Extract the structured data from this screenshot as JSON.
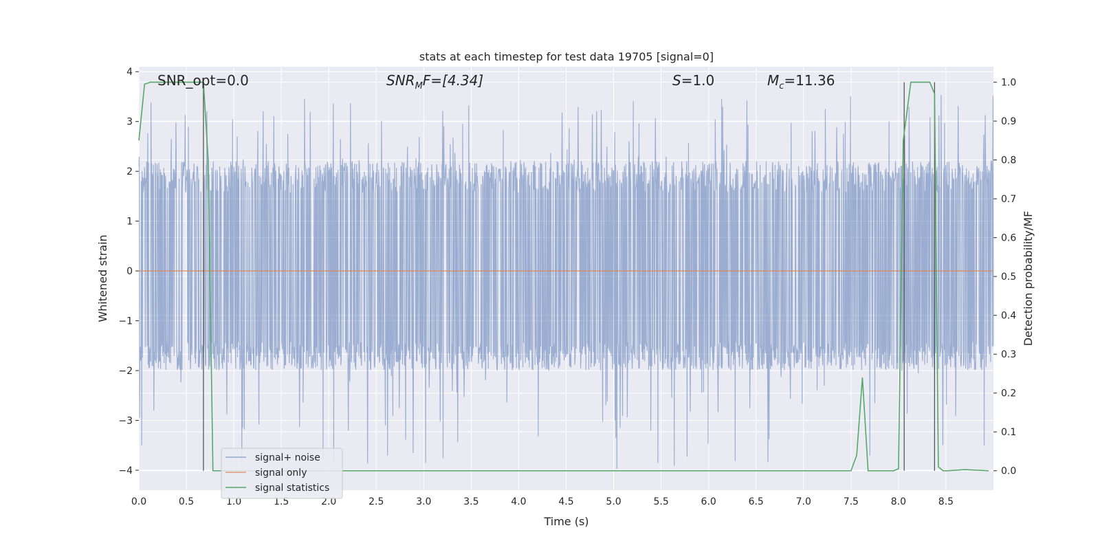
{
  "chart_data": {
    "type": "line",
    "title": "stats at each timestep for test data 19705 [signal=0]",
    "xlabel": "Time (s)",
    "ylabel": "Whitened strain",
    "y2label": "Detection probability/MF",
    "xlim": [
      0,
      9
    ],
    "ylim": [
      -4.4,
      4.1
    ],
    "y2lim": [
      -0.05,
      1.04
    ],
    "xticks": [
      "0.0",
      "0.5",
      "1.0",
      "1.5",
      "2.0",
      "2.5",
      "3.0",
      "3.5",
      "4.0",
      "4.5",
      "5.0",
      "5.5",
      "6.0",
      "6.5",
      "7.0",
      "7.5",
      "8.0",
      "8.5"
    ],
    "yticks": [
      "4",
      "3",
      "2",
      "1",
      "0",
      "−1",
      "−2",
      "−3",
      "−4"
    ],
    "y2ticks": [
      "1.0",
      "0.9",
      "0.8",
      "0.7",
      "0.6",
      "0.5",
      "0.4",
      "0.3",
      "0.2",
      "0.1",
      "0.0"
    ],
    "grid": true,
    "legend_position": "lower-left",
    "annotations": {
      "snr_opt": "SNR_opt=0.0",
      "snr_mf_main": "SNR",
      "snr_mf_sub": "M",
      "snr_mf_rest": "F=[4.34]",
      "s_main": "S",
      "s_rest": "=1.0",
      "mc_main": "M",
      "mc_sub": "c",
      "mc_rest": "=11.36"
    },
    "series": [
      {
        "name": "signal+ noise",
        "color": "#4c72b0",
        "description_values": "dense whitened noise, roughly within [-2, 2] with spikes up to about ±3.5",
        "envelope": {
          "core_low": -1.9,
          "core_high": 2.1,
          "max_spike": 3.55,
          "min_spike": -4.0
        }
      },
      {
        "name": "signal only",
        "color": "#dd8452",
        "x": [
          0,
          9
        ],
        "y": [
          0,
          0
        ]
      },
      {
        "name": "signal statistics",
        "color": "#55a868",
        "axis": "right",
        "x": [
          0.0,
          0.06,
          0.12,
          0.5,
          0.68,
          0.73,
          0.78,
          0.82,
          7.5,
          7.56,
          7.62,
          7.68,
          7.95,
          8.0,
          8.05,
          8.13,
          8.33,
          8.38,
          8.42,
          8.47,
          8.52,
          8.7,
          8.95
        ],
        "y": [
          0.85,
          0.995,
          1.0,
          1.0,
          1.0,
          0.8,
          0.0,
          0.0,
          0.0,
          0.04,
          0.24,
          0.0,
          0.0,
          0.005,
          0.85,
          1.0,
          1.0,
          0.97,
          0.01,
          0.0,
          0.0,
          0.003,
          0.0
        ]
      }
    ],
    "vertical_markers_x": [
      0.68,
      8.06,
      8.38
    ]
  }
}
